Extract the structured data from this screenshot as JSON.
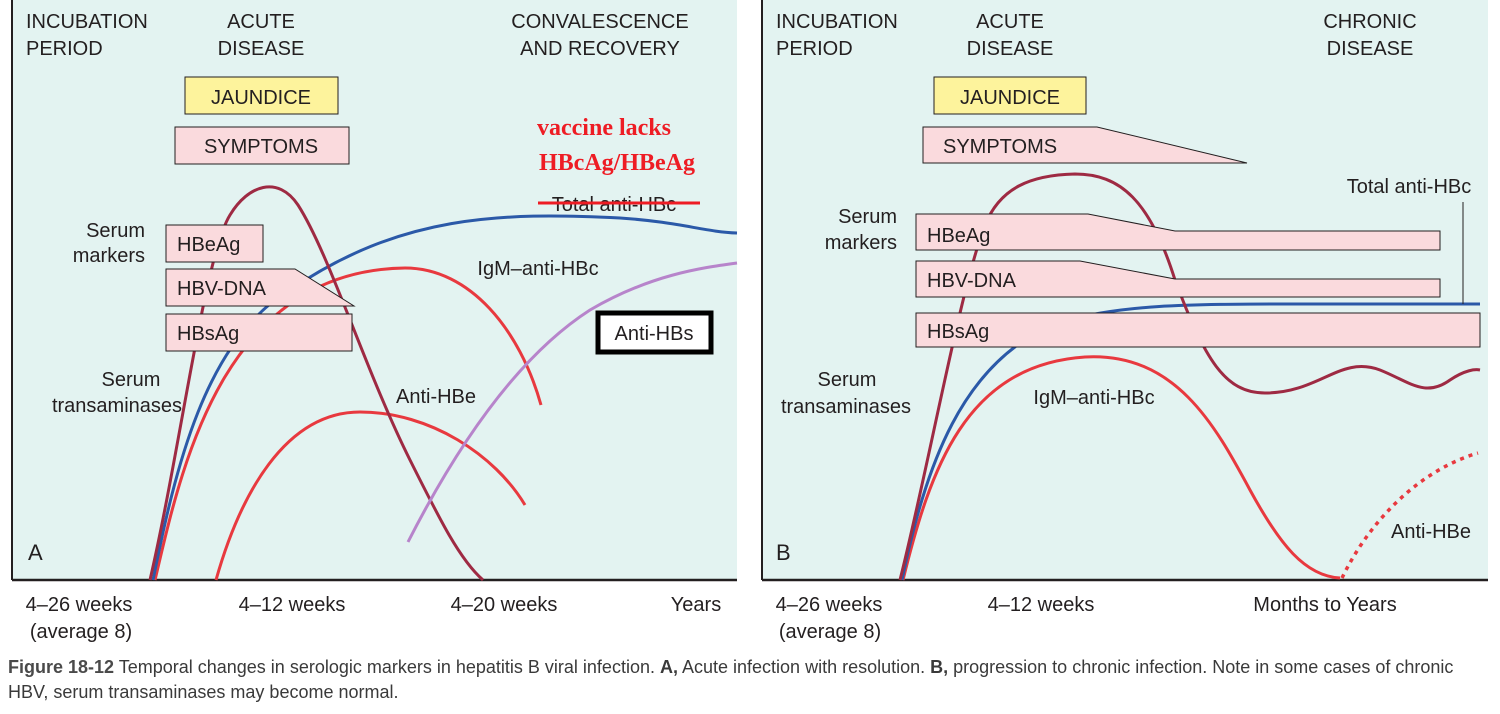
{
  "colors": {
    "panel_bg": "#e3f3f1",
    "axis": "#231f20",
    "transaminases": "#9e2a43",
    "total_anti_hbc": "#2b59a8",
    "igm_anti_hbc": "#e8393f",
    "anti_hbe": "#e8393f",
    "anti_hbs": "#b784cb",
    "jaundice_box": "#fdf39c",
    "marker_box": "#fadadd",
    "annotation": "#ee1c24"
  },
  "panel_a": {
    "letter": "A",
    "phases": {
      "incubation": [
        "INCUBATION",
        "PERIOD"
      ],
      "acute": [
        "ACUTE",
        "DISEASE"
      ],
      "recovery": [
        "CONVALESCENCE",
        "AND RECOVERY"
      ]
    },
    "jaundice": "JAUNDICE",
    "symptoms": "SYMPTOMS",
    "serum_markers": [
      "Serum",
      "markers"
    ],
    "serum_transaminases": [
      "Serum",
      "transaminases"
    ],
    "boxes": {
      "hbeag": "HBeAg",
      "hbv_dna": "HBV-DNA",
      "hbsag": "HBsAg"
    },
    "curve_labels": {
      "total_anti_hbc": "Total anti-HBc",
      "igm_anti_hbc": "IgM–anti-HBc",
      "anti_hbe": "Anti-HBe",
      "anti_hbs": "Anti-HBs"
    },
    "annotation": [
      "vaccine lacks",
      "HBcAg/HBeAg"
    ],
    "axis_ticks": [
      "4–26 weeks",
      "(average 8)",
      "4–12 weeks",
      "4–20 weeks",
      "Years"
    ]
  },
  "panel_b": {
    "letter": "B",
    "phases": {
      "incubation": [
        "INCUBATION",
        "PERIOD"
      ],
      "acute": [
        "ACUTE",
        "DISEASE"
      ],
      "chronic": [
        "CHRONIC",
        "DISEASE"
      ]
    },
    "jaundice": "JAUNDICE",
    "symptoms": "SYMPTOMS",
    "serum_markers": [
      "Serum",
      "markers"
    ],
    "serum_transaminases": [
      "Serum",
      "transaminases"
    ],
    "boxes": {
      "hbeag": "HBeAg",
      "hbv_dna": "HBV-DNA",
      "hbsag": "HBsAg"
    },
    "curve_labels": {
      "total_anti_hbc": "Total anti-HBc",
      "igm_anti_hbc": "IgM–anti-HBc",
      "anti_hbe": "Anti-HBe"
    },
    "axis_ticks": [
      "4–26 weeks",
      "(average 8)",
      "4–12 weeks",
      "Months to Years"
    ]
  },
  "caption": {
    "figure_number": "Figure 18-12",
    "text_1": " Temporal changes in serologic markers in hepatitis B viral infection. ",
    "a_label": "A,",
    "text_2": " Acute infection with resolution. ",
    "b_label": "B,",
    "text_3": " progression to chronic infection. Note in some cases of chronic HBV, serum transaminases may become normal."
  }
}
